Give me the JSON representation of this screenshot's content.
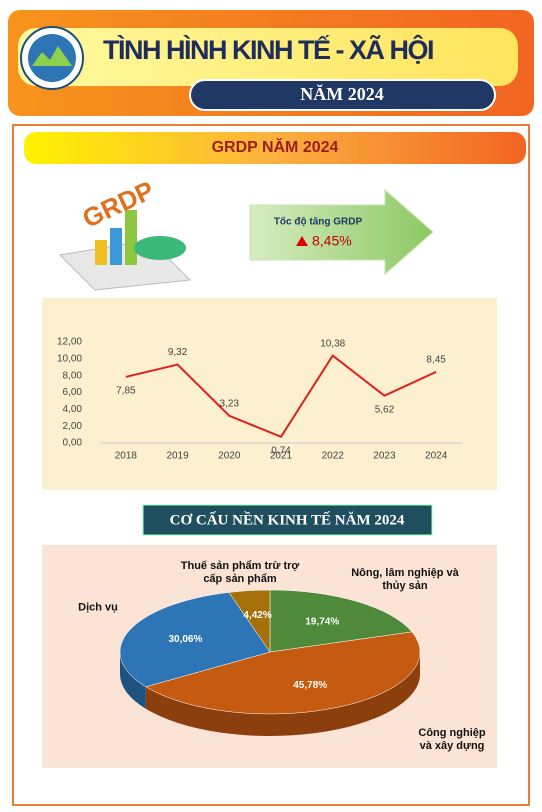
{
  "header": {
    "title": "TÌNH HÌNH KINH TẾ - XÃ HỘI",
    "subtitle": "NĂM 2024"
  },
  "section": {
    "title": "GRDP NĂM 2024",
    "icon_text": "GRDP",
    "growth_label": "Tốc độ tăng GRDP",
    "growth_value": "8,45%"
  },
  "chart_data": [
    {
      "type": "line",
      "categories": [
        "2018",
        "2019",
        "2020",
        "2021",
        "2022",
        "2023",
        "2024"
      ],
      "values": [
        7.85,
        9.32,
        3.23,
        0.74,
        10.38,
        5.62,
        8.45
      ],
      "value_labels": [
        "7,85",
        "9,32",
        "3,23",
        "0,74",
        "10,38",
        "5,62",
        "8,45"
      ],
      "color": "#e02020",
      "ylim": [
        0,
        12
      ],
      "yticks": [
        {
          "value": 0,
          "label": "0,00"
        },
        {
          "value": 2,
          "label": "2,00"
        },
        {
          "value": 4,
          "label": "4,00"
        },
        {
          "value": 6,
          "label": "6,00"
        },
        {
          "value": 8,
          "label": "8,00"
        },
        {
          "value": 10,
          "label": "10,00"
        },
        {
          "value": 12,
          "label": "12,00"
        }
      ],
      "grid": false
    },
    {
      "type": "pie",
      "title": "CƠ CẤU NỀN KINH TẾ  NĂM 2024",
      "categories": [
        "Nông, lâm nghiệp và thủy sản",
        "Công nghiệp và xây dựng",
        "Dịch vụ",
        "Thuế sản phẩm trừ trợ cấp sản phẩm"
      ],
      "values": [
        19.74,
        45.78,
        30.06,
        4.42
      ],
      "value_labels": [
        "19,74%",
        "45,78%",
        "30,06%",
        "4,42%"
      ],
      "colors": [
        "#4e8a3a",
        "#c55a11",
        "#2e75b6",
        "#a5700a"
      ]
    }
  ]
}
